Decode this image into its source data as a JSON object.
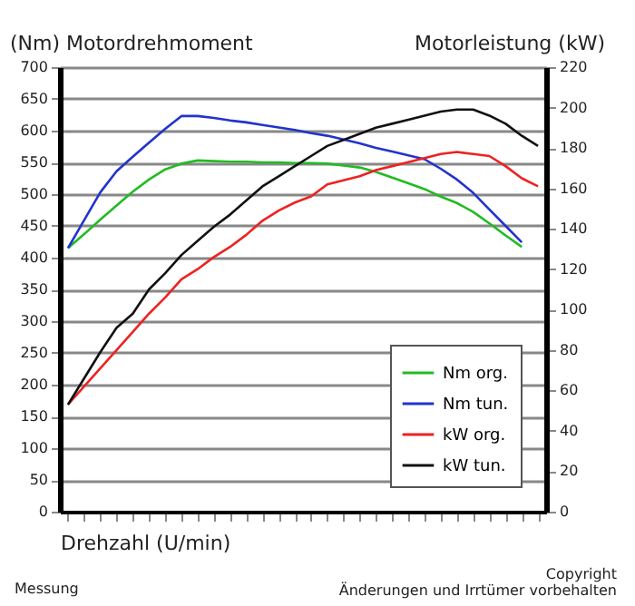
{
  "chart_data": {
    "type": "line",
    "ylabel": "(Nm) Motordrehmoment",
    "y2label": "Motorleistung (kW)",
    "xlabel": "Drehzahl (U/min)",
    "annotations": [
      "Messung",
      "Copyright",
      "Änderungen und Irrtümer vorbehalten"
    ],
    "categories": [
      null,
      null,
      null,
      null,
      null,
      null,
      null,
      null,
      null,
      null,
      null,
      null,
      null,
      null,
      null,
      null,
      null,
      null,
      null,
      null,
      null,
      null,
      null,
      null,
      null,
      null,
      null,
      null,
      null,
      null
    ],
    "ylim": [
      0,
      700
    ],
    "yticks": [
      0,
      50,
      100,
      150,
      200,
      250,
      300,
      350,
      400,
      450,
      500,
      550,
      600,
      650,
      700
    ],
    "y2lim": [
      0,
      220
    ],
    "y2ticks": [
      0,
      20,
      40,
      60,
      80,
      100,
      120,
      140,
      160,
      180,
      200,
      220
    ],
    "grid": "y",
    "legend": "bottom right",
    "marker": "none",
    "line_style": "solid",
    "series": [
      {
        "name": "Nm org.",
        "color": "#22bb22",
        "values": [
          415,
          437,
          460,
          482,
          504,
          523,
          539,
          548,
          553,
          552,
          551,
          551,
          550,
          550,
          549,
          549,
          548,
          545,
          542,
          535,
          526,
          517,
          508,
          496,
          486,
          472,
          454,
          435,
          417,
          null
        ]
      },
      {
        "name": "Nm tun.",
        "color": "#2233cc",
        "values": [
          415,
          459,
          503,
          536,
          559,
          581,
          603,
          623,
          623,
          620,
          616,
          613,
          609,
          605,
          601,
          596,
          592,
          586,
          580,
          573,
          567,
          561,
          555,
          540,
          523,
          502,
          476,
          450,
          424,
          null
        ]
      },
      {
        "name": "kW org.",
        "color": "#ee2222",
        "axis": "y2",
        "values": [
          53,
          62,
          71,
          80,
          89,
          98,
          106,
          115,
          120,
          126,
          131,
          137,
          144,
          149,
          153,
          156,
          162,
          164,
          166,
          169,
          171,
          173,
          175,
          177,
          178,
          177,
          176,
          171,
          165,
          161
        ]
      },
      {
        "name": "kW tun.",
        "color": "#111111",
        "axis": "y2",
        "values": [
          53,
          66,
          79,
          91,
          98,
          110,
          118,
          127,
          134,
          141,
          147,
          154,
          161,
          166,
          171,
          176,
          181,
          184,
          187,
          190,
          192,
          194,
          196,
          198,
          199,
          199,
          196,
          192,
          186,
          181
        ]
      }
    ]
  }
}
